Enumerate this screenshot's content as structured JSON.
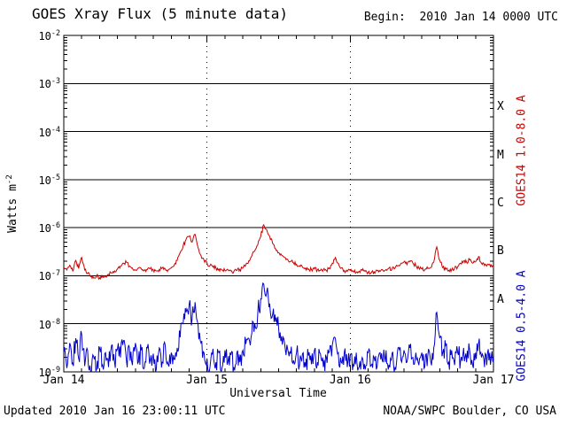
{
  "header": {
    "begin": "Begin:  2010 Jan 14 0000 UTC"
  },
  "footer": {
    "updated": "Updated 2010 Jan 16 23:00:11 UTC",
    "credit": "NOAA/SWPC Boulder, CO USA"
  },
  "chart_data": {
    "type": "line",
    "title": "GOES Xray Flux (5 minute data)",
    "xlabel": "Universal Time",
    "ylabel": "Watts m-2",
    "ylabel_base": "Watts m",
    "ylabel_exp": "-2",
    "x_ticks": [
      "Jan 14",
      "Jan 15",
      "Jan 16",
      "Jan 17"
    ],
    "x_tick_hours": [
      0,
      24,
      48,
      72
    ],
    "x_range_hours": [
      0,
      72
    ],
    "y_exponents": [
      -2,
      -3,
      -4,
      -5,
      -6,
      -7,
      -8,
      -9
    ],
    "ylim_log10": [
      -9,
      -2
    ],
    "flare_class_labels": [
      "X",
      "M",
      "C",
      "B",
      "A"
    ],
    "grid": {
      "h_solid_exponents": [
        -3,
        -4,
        -5,
        -6,
        -7,
        -8
      ],
      "v_dashed_hours": [
        24,
        48
      ]
    },
    "series": [
      {
        "name": "GOES14 1.0-8.0 A",
        "color": "#cc0000",
        "t_start": 0,
        "t_step": 0.5,
        "noise_log": 0.04,
        "log10_flux": [
          -6.82,
          -6.88,
          -6.78,
          -6.9,
          -6.68,
          -6.85,
          -6.62,
          -6.88,
          -6.95,
          -7.02,
          -7.05,
          -7.0,
          -7.04,
          -7.0,
          -7.02,
          -6.97,
          -6.94,
          -6.9,
          -6.86,
          -6.8,
          -6.74,
          -6.72,
          -6.8,
          -6.84,
          -6.88,
          -6.84,
          -6.86,
          -6.89,
          -6.87,
          -6.85,
          -6.88,
          -6.9,
          -6.87,
          -6.84,
          -6.86,
          -6.88,
          -6.84,
          -6.78,
          -6.68,
          -6.52,
          -6.38,
          -6.24,
          -6.18,
          -6.3,
          -6.14,
          -6.42,
          -6.58,
          -6.68,
          -6.74,
          -6.79,
          -6.82,
          -6.84,
          -6.86,
          -6.88,
          -6.89,
          -6.87,
          -6.9,
          -6.91,
          -6.89,
          -6.87,
          -6.84,
          -6.77,
          -6.69,
          -6.59,
          -6.48,
          -6.36,
          -6.18,
          -5.94,
          -6.04,
          -6.18,
          -6.33,
          -6.44,
          -6.52,
          -6.57,
          -6.62,
          -6.66,
          -6.7,
          -6.73,
          -6.76,
          -6.79,
          -6.82,
          -6.84,
          -6.86,
          -6.87,
          -6.86,
          -6.88,
          -6.89,
          -6.87,
          -6.89,
          -6.84,
          -6.74,
          -6.62,
          -6.74,
          -6.84,
          -6.89,
          -6.91,
          -6.89,
          -6.91,
          -6.93,
          -6.91,
          -6.89,
          -6.91,
          -6.93,
          -6.94,
          -6.92,
          -6.89,
          -6.91,
          -6.89,
          -6.87,
          -6.84,
          -6.86,
          -6.84,
          -6.79,
          -6.74,
          -6.71,
          -6.77,
          -6.71,
          -6.74,
          -6.79,
          -6.84,
          -6.86,
          -6.87,
          -6.85,
          -6.83,
          -6.72,
          -6.4,
          -6.68,
          -6.83,
          -6.87,
          -6.89,
          -6.87,
          -6.84,
          -6.81,
          -6.74,
          -6.69,
          -6.72,
          -6.67,
          -6.74,
          -6.71,
          -6.6,
          -6.74,
          -6.79,
          -6.76,
          -6.81,
          -6.78
        ]
      },
      {
        "name": "GOES14 0.5-4.0 A",
        "color": "#0000cc",
        "t_start": 0,
        "t_step": 0.5,
        "noise_log": 0.22,
        "log10_flux": [
          -8.6,
          -8.92,
          -8.4,
          -8.82,
          -8.3,
          -8.72,
          -8.22,
          -8.88,
          -8.55,
          -9.0,
          -8.68,
          -8.95,
          -8.5,
          -8.85,
          -8.6,
          -8.9,
          -8.45,
          -8.8,
          -8.52,
          -8.7,
          -8.35,
          -8.76,
          -8.5,
          -8.86,
          -8.4,
          -8.8,
          -8.55,
          -8.92,
          -8.5,
          -8.75,
          -8.62,
          -8.95,
          -8.5,
          -8.8,
          -8.45,
          -8.85,
          -8.6,
          -8.74,
          -8.5,
          -8.28,
          -8.0,
          -7.76,
          -7.6,
          -7.9,
          -7.55,
          -8.02,
          -8.4,
          -8.6,
          -8.72,
          -8.9,
          -8.52,
          -8.8,
          -8.6,
          -8.92,
          -8.55,
          -8.8,
          -8.65,
          -8.9,
          -8.6,
          -8.8,
          -8.55,
          -8.42,
          -8.3,
          -8.2,
          -8.0,
          -7.8,
          -7.48,
          -7.17,
          -7.34,
          -7.58,
          -7.8,
          -7.96,
          -8.1,
          -8.26,
          -8.4,
          -8.52,
          -8.62,
          -8.76,
          -8.6,
          -8.86,
          -8.62,
          -8.9,
          -8.66,
          -8.84,
          -8.55,
          -8.8,
          -8.62,
          -8.9,
          -8.7,
          -8.58,
          -8.44,
          -8.3,
          -8.6,
          -8.8,
          -8.6,
          -8.9,
          -8.66,
          -8.85,
          -8.6,
          -8.9,
          -8.7,
          -8.95,
          -8.6,
          -8.86,
          -8.7,
          -8.9,
          -8.6,
          -8.8,
          -8.55,
          -8.85,
          -8.62,
          -8.9,
          -8.5,
          -8.76,
          -8.55,
          -8.8,
          -8.5,
          -8.7,
          -8.6,
          -8.86,
          -8.6,
          -8.9,
          -8.66,
          -8.8,
          -8.5,
          -7.76,
          -8.3,
          -8.6,
          -8.45,
          -8.8,
          -8.55,
          -8.86,
          -8.6,
          -8.75,
          -8.5,
          -8.8,
          -8.55,
          -8.85,
          -8.6,
          -8.4,
          -8.7,
          -8.9,
          -8.6,
          -8.85,
          -8.7
        ]
      }
    ]
  }
}
